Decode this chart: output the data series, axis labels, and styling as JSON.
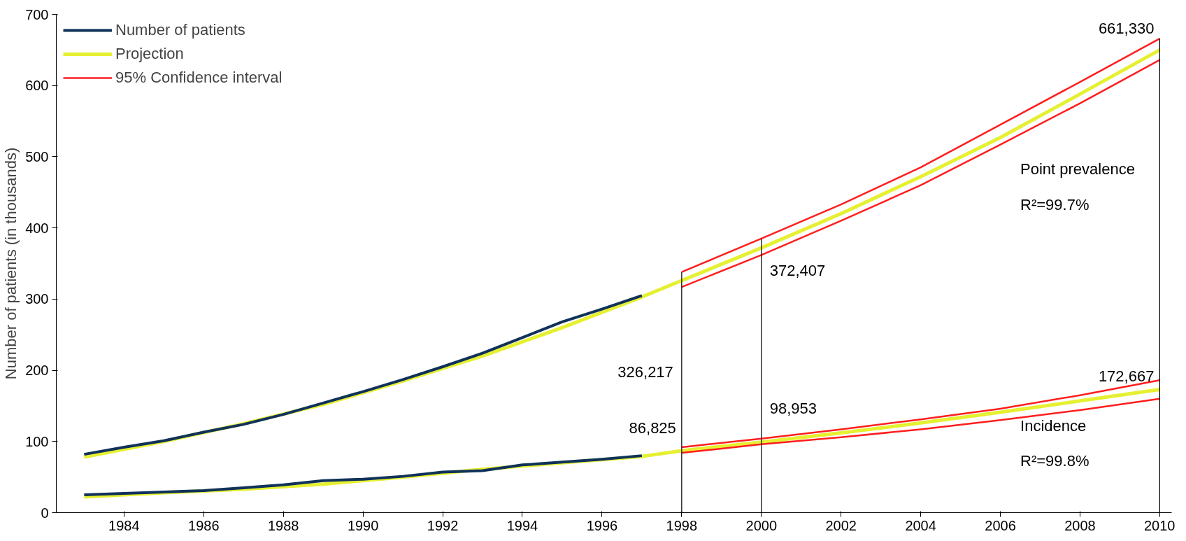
{
  "chart_data": {
    "type": "line",
    "ylabel": "Number of patients (in thousands)",
    "xlim": [
      1982.3,
      2010.3
    ],
    "ylim": [
      0,
      700
    ],
    "xticks": [
      1984,
      1986,
      1988,
      1990,
      1992,
      1994,
      1996,
      1998,
      2000,
      2002,
      2004,
      2006,
      2008,
      2010
    ],
    "yticks": [
      0,
      100,
      200,
      300,
      400,
      500,
      600,
      700
    ],
    "grid": false,
    "legend": "top left",
    "marker": "none",
    "line_style": "solid",
    "series": [
      {
        "name": "Projection",
        "color": "#e6f032",
        "x": [
          1983,
          1985,
          1987,
          1989,
          1991,
          1993,
          1995,
          1997,
          1998,
          2000,
          2002,
          2004,
          2006,
          2008,
          2010
        ],
        "values": [
          78,
          100,
          125,
          152,
          185,
          220,
          260,
          303,
          326,
          372,
          420,
          472,
          527,
          588,
          650
        ]
      },
      {
        "color": "#e6f032",
        "x": [
          1983,
          1985,
          1987,
          1989,
          1991,
          1993,
          1995,
          1997,
          1998,
          2000,
          2002,
          2004,
          2006,
          2008,
          2010
        ],
        "values": [
          22,
          28,
          33,
          40,
          50,
          61,
          70,
          79,
          87,
          99,
          112,
          126,
          141,
          157,
          173
        ]
      },
      {
        "name": "Number of patients",
        "color": "#10325a",
        "x": [
          1983,
          1984,
          1985,
          1986,
          1987,
          1988,
          1989,
          1990,
          1991,
          1992,
          1993,
          1994,
          1995,
          1996,
          1997
        ],
        "values": [
          82,
          92,
          101,
          113,
          124,
          138,
          154,
          170,
          187,
          205,
          224,
          246,
          268,
          286,
          305
        ]
      },
      {
        "color": "#10325a",
        "x": [
          1983,
          1984,
          1985,
          1986,
          1987,
          1988,
          1989,
          1990,
          1991,
          1992,
          1993,
          1994,
          1995,
          1996,
          1997
        ],
        "values": [
          25,
          27,
          29,
          31,
          35,
          39,
          45,
          47,
          51,
          57,
          59,
          67,
          71,
          75,
          80
        ]
      },
      {
        "name": "95% Confidence interval",
        "color": "#ff1e1e",
        "x": [
          1998,
          2000,
          2002,
          2004,
          2006,
          2008,
          2010
        ],
        "values": [
          338,
          385,
          433,
          485,
          545,
          605,
          666
        ]
      },
      {
        "color": "#ff1e1e",
        "x": [
          1998,
          2000,
          2002,
          2004,
          2006,
          2008,
          2010
        ],
        "values": [
          317,
          362,
          410,
          460,
          517,
          575,
          636
        ]
      },
      {
        "color": "#ff1e1e",
        "x": [
          1998,
          2000,
          2002,
          2004,
          2006,
          2008,
          2010
        ],
        "values": [
          92,
          104,
          117,
          131,
          146,
          165,
          186
        ]
      },
      {
        "color": "#ff1e1e",
        "x": [
          1998,
          2000,
          2002,
          2004,
          2006,
          2008,
          2010
        ],
        "values": [
          84,
          96,
          106,
          117,
          130,
          144,
          160
        ]
      }
    ],
    "ref_lines": [
      {
        "axis": "x",
        "value": 1998,
        "color": "#000000"
      },
      {
        "axis": "x",
        "value": 2000,
        "color": "#000000"
      },
      {
        "axis": "x",
        "value": 2010,
        "color": "#000000"
      }
    ],
    "annotations": [
      {
        "text": "372,407",
        "x": 2000,
        "y": 372.407
      },
      {
        "text": "661,330",
        "x": 2010,
        "y": 661.33
      },
      {
        "text": "86,825",
        "x": 1998,
        "y": 86.825
      },
      {
        "text": "98,953",
        "x": 2000,
        "y": 98.953
      },
      {
        "text": "172,667",
        "x": 2010,
        "y": 172.667
      },
      "326,217",
      "Point prevalence",
      "R²=99.7%",
      "Incidence",
      "R²=99.8%"
    ]
  }
}
